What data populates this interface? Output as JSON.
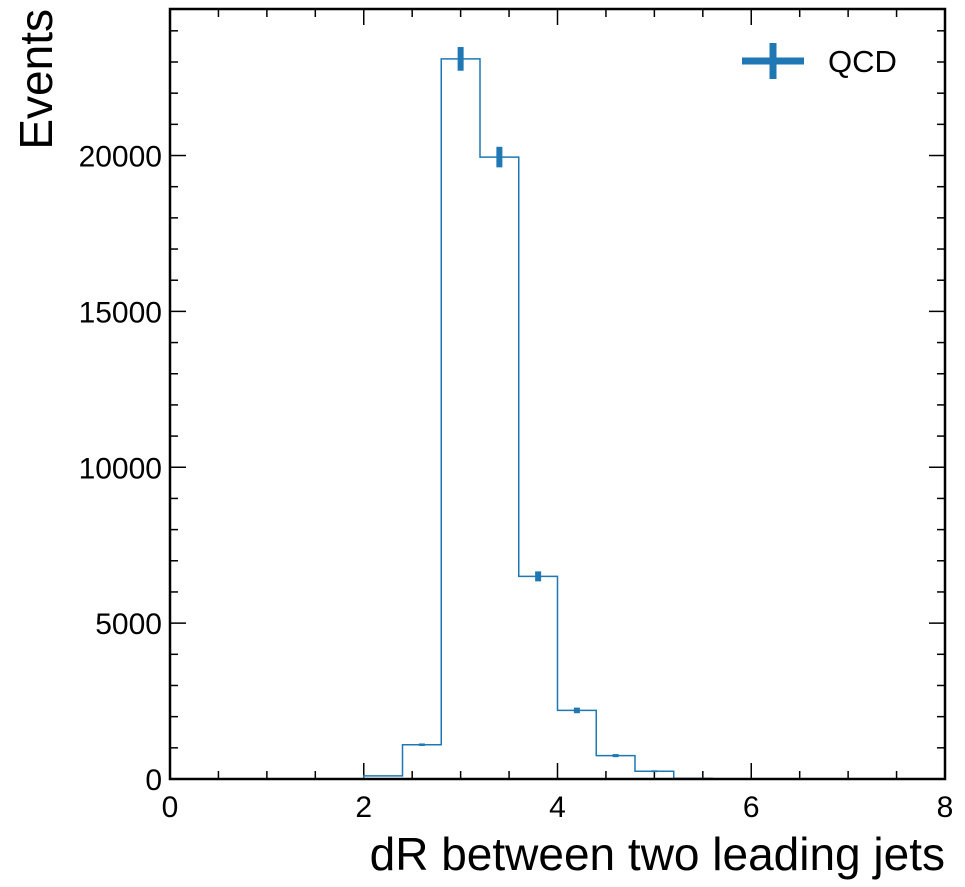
{
  "chart_data": {
    "type": "histogram",
    "xlabel": "dR between two leading jets",
    "ylabel": "Events",
    "xlim": [
      0,
      8
    ],
    "ylim": [
      0,
      24700
    ],
    "x_ticks": [
      "0",
      "2",
      "4",
      "6",
      "8"
    ],
    "y_ticks": [
      "0",
      "5000",
      "10000",
      "15000",
      "20000"
    ],
    "grid": false,
    "legend": {
      "position": "top-right"
    },
    "series": [
      {
        "name": "QCD",
        "color": "#1f77b4",
        "bin_edges": [
          2.0,
          2.4,
          2.8,
          3.2,
          3.6,
          4.0,
          4.4,
          4.8,
          5.2,
          5.6
        ],
        "values": [
          100,
          1100,
          23100,
          19950,
          6500,
          2200,
          750,
          250,
          20
        ],
        "errors": [
          10,
          40,
          380,
          330,
          160,
          90,
          50,
          30,
          10
        ]
      }
    ]
  }
}
